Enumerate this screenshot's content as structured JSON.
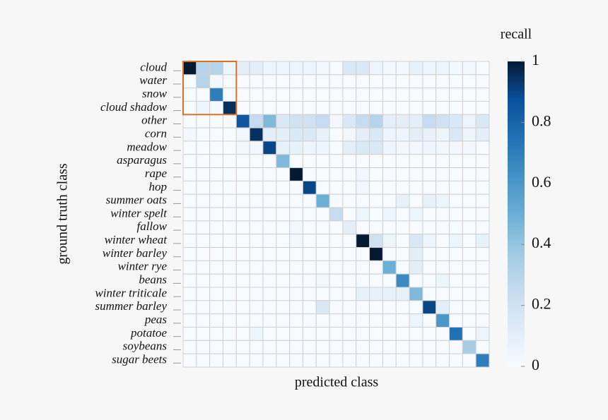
{
  "chart_data": {
    "type": "heatmap",
    "x_label": "predicted class",
    "y_label": "ground truth class",
    "colorbar_label": "recall",
    "categories": [
      "cloud",
      "water",
      "snow",
      "cloud shadow",
      "other",
      "corn",
      "meadow",
      "asparagus",
      "rape",
      "hop",
      "summer oats",
      "winter spelt",
      "fallow",
      "winter wheat",
      "winter barley",
      "winter rye",
      "beans",
      "winter triticale",
      "summer barley",
      "peas",
      "potatoe",
      "soybeans",
      "sugar beets"
    ],
    "values": [
      [
        1,
        0.3,
        0.3,
        0.05,
        0.1,
        0.1,
        0.05,
        0.05,
        0.05,
        0.05,
        0.02,
        0,
        0.15,
        0.15,
        0.05,
        0.02,
        0.02,
        0.08,
        0.05,
        0.05,
        0.02,
        0.02,
        0
      ],
      [
        0,
        0.3,
        0.02,
        0,
        0,
        0,
        0,
        0,
        0,
        0,
        0,
        0,
        0,
        0,
        0,
        0,
        0,
        0,
        0,
        0,
        0,
        0,
        0
      ],
      [
        0,
        0,
        0.7,
        0,
        0,
        0,
        0,
        0,
        0,
        0,
        0,
        0,
        0,
        0,
        0,
        0,
        0,
        0,
        0,
        0,
        0,
        0,
        0
      ],
      [
        0,
        0.05,
        0.02,
        0.95,
        0,
        0,
        0,
        0,
        0,
        0,
        0,
        0,
        0,
        0,
        0,
        0,
        0,
        0,
        0,
        0,
        0,
        0,
        0
      ],
      [
        0,
        0,
        0,
        0,
        0.85,
        0.25,
        0.45,
        0.15,
        0.2,
        0.2,
        0.25,
        0.02,
        0.15,
        0.25,
        0.3,
        0.1,
        0.1,
        0.1,
        0.25,
        0.2,
        0.15,
        0.05,
        0.15
      ],
      [
        0.02,
        0,
        0,
        0,
        0.03,
        0.95,
        0.1,
        0.1,
        0.15,
        0.15,
        0.08,
        0,
        0.03,
        0.1,
        0.15,
        0.05,
        0.05,
        0.1,
        0.08,
        0.05,
        0.15,
        0.05,
        0.1
      ],
      [
        0,
        0,
        0,
        0,
        0.03,
        0.03,
        0.9,
        0.08,
        0.08,
        0.05,
        0.05,
        0,
        0.1,
        0.15,
        0.15,
        0.05,
        0.03,
        0.03,
        0.05,
        0.03,
        0.03,
        0.02,
        0
      ],
      [
        0,
        0,
        0,
        0,
        0,
        0,
        0,
        0.45,
        0,
        0,
        0,
        0,
        0,
        0,
        0,
        0,
        0,
        0,
        0,
        0,
        0,
        0,
        0
      ],
      [
        0,
        0,
        0,
        0,
        0,
        0,
        0,
        0,
        1,
        0,
        0,
        0,
        0,
        0.03,
        0,
        0,
        0,
        0,
        0,
        0,
        0,
        0,
        0
      ],
      [
        0,
        0,
        0,
        0,
        0,
        0,
        0,
        0,
        0,
        0.9,
        0,
        0,
        0,
        0.03,
        0,
        0,
        0,
        0,
        0,
        0,
        0,
        0,
        0
      ],
      [
        0,
        0,
        0,
        0,
        0,
        0,
        0,
        0,
        0,
        0,
        0.5,
        0,
        0,
        0,
        0,
        0,
        0.08,
        0,
        0.08,
        0.05,
        0,
        0,
        0
      ],
      [
        0,
        0,
        0,
        0,
        0,
        0,
        0,
        0,
        0,
        0,
        0,
        0.25,
        0,
        0.05,
        0,
        0.05,
        0,
        0.05,
        0,
        0,
        0,
        0,
        0
      ],
      [
        0,
        0,
        0,
        0,
        0,
        0,
        0,
        0,
        0.03,
        0,
        0,
        0,
        0.1,
        0,
        0,
        0,
        0,
        0,
        0,
        0,
        0,
        0,
        0
      ],
      [
        0,
        0,
        0,
        0,
        0,
        0,
        0,
        0,
        0.03,
        0,
        0,
        0,
        0,
        1,
        0.2,
        0.05,
        0,
        0.15,
        0.05,
        0,
        0.05,
        0,
        0.08
      ],
      [
        0,
        0,
        0,
        0,
        0,
        0,
        0,
        0,
        0,
        0,
        0,
        0,
        0,
        0,
        1,
        0,
        0,
        0.1,
        0,
        0,
        0,
        0,
        0
      ],
      [
        0,
        0,
        0,
        0,
        0,
        0,
        0,
        0,
        0,
        0,
        0,
        0,
        0,
        0,
        0,
        0.5,
        0,
        0.1,
        0,
        0,
        0,
        0,
        0
      ],
      [
        0,
        0,
        0,
        0,
        0,
        0,
        0,
        0,
        0,
        0,
        0.03,
        0,
        0,
        0,
        0,
        0,
        0.65,
        0,
        0,
        0.05,
        0,
        0,
        0
      ],
      [
        0,
        0,
        0,
        0,
        0,
        0,
        0,
        0,
        0,
        0,
        0,
        0,
        0,
        0.08,
        0.08,
        0.08,
        0.08,
        0.45,
        0,
        0,
        0,
        0,
        0
      ],
      [
        0,
        0,
        0,
        0,
        0,
        0,
        0,
        0,
        0,
        0,
        0.15,
        0,
        0,
        0,
        0,
        0,
        0,
        0,
        0.9,
        0.1,
        0,
        0,
        0
      ],
      [
        0,
        0,
        0,
        0,
        0,
        0,
        0,
        0,
        0,
        0,
        0,
        0,
        0,
        0,
        0,
        0,
        0,
        0.05,
        0,
        0.6,
        0,
        0,
        0
      ],
      [
        0,
        0,
        0,
        0,
        0,
        0.05,
        0,
        0,
        0,
        0,
        0,
        0,
        0,
        0,
        0,
        0,
        0,
        0,
        0,
        0,
        0.75,
        0,
        0.05
      ],
      [
        0,
        0,
        0,
        0,
        0,
        0,
        0,
        0,
        0,
        0,
        0,
        0,
        0,
        0,
        0,
        0,
        0,
        0,
        0,
        0,
        0,
        0.35,
        0
      ],
      [
        0,
        0,
        0,
        0,
        0,
        0,
        0,
        0,
        0,
        0,
        0,
        0,
        0,
        0,
        0,
        0,
        0,
        0,
        0,
        0,
        0,
        0,
        0.7
      ]
    ],
    "clim": [
      0,
      1
    ],
    "cticks": [
      0,
      0.2,
      0.4,
      0.6,
      0.8,
      1
    ]
  }
}
